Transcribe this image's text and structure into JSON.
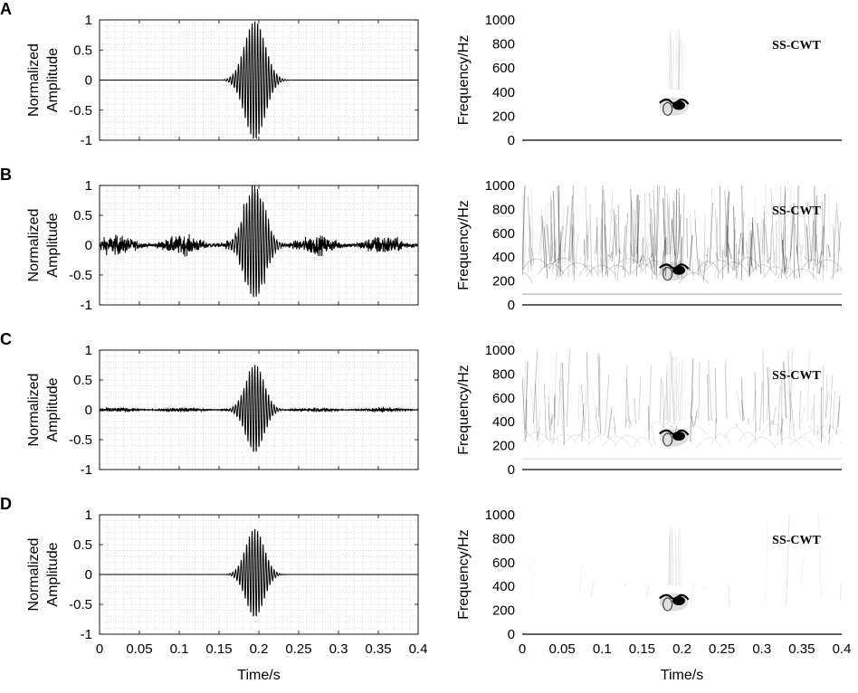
{
  "chart_data": [
    {
      "type": "line",
      "panel_label": "A",
      "ylabel": "Normalized\nAmplitude",
      "xlabel": "",
      "xlim": [
        0,
        0.4
      ],
      "ylim": [
        -1,
        1
      ],
      "yticks": [
        1,
        0.5,
        0,
        -0.5,
        -1
      ],
      "ytick_labels": [
        "1",
        "0.5",
        "0",
        "-0.5",
        "-1"
      ],
      "grid": true,
      "signal": {
        "noise": 0.0,
        "burst_center": 0.195,
        "burst_width": 0.018,
        "peak": 1.0,
        "trough": -1.0,
        "burst_freq": 290
      },
      "x": [
        0,
        0.16,
        0.17,
        0.18,
        0.19,
        0.195,
        0.2,
        0.21,
        0.4
      ],
      "y": [
        0,
        0,
        0.25,
        -0.55,
        0.85,
        1.0,
        -1.0,
        0,
        0
      ]
    },
    {
      "type": "heatmap",
      "panel_label": "A",
      "annotation": "SS-CWT",
      "ylabel": "Frequency/Hz",
      "xlabel": "",
      "xlim": [
        0,
        0.4
      ],
      "ylim": [
        0,
        1000
      ],
      "yticks": [
        1000,
        800,
        600,
        400,
        200,
        0
      ],
      "ytick_labels": [
        "1000",
        "800",
        "600",
        "400",
        "200",
        "0"
      ],
      "energy_center": {
        "time": 0.19,
        "frequency": 300
      },
      "noise_level": 0.0
    },
    {
      "type": "line",
      "panel_label": "B",
      "ylabel": "Normalized\nAmplitude",
      "xlabel": "",
      "xlim": [
        0,
        0.4
      ],
      "ylim": [
        -1,
        1
      ],
      "yticks": [
        1,
        0.5,
        0,
        -0.5,
        -1
      ],
      "ytick_labels": [
        "1",
        "0.5",
        "0",
        "-0.5",
        "-1"
      ],
      "grid": true,
      "signal": {
        "noise": 0.11,
        "burst_center": 0.195,
        "burst_width": 0.018,
        "peak": 1.0,
        "trough": -0.9,
        "burst_freq": 290
      },
      "x": [
        0,
        0.1,
        0.19,
        0.195,
        0.2,
        0.3,
        0.4
      ],
      "y": [
        0.05,
        -0.2,
        0.7,
        1.0,
        -0.9,
        0.15,
        0.05
      ]
    },
    {
      "type": "heatmap",
      "panel_label": "B",
      "annotation": "SS-CWT",
      "ylabel": "Frequency/Hz",
      "xlabel": "",
      "xlim": [
        0,
        0.4
      ],
      "ylim": [
        0,
        1000
      ],
      "yticks": [
        1000,
        800,
        600,
        400,
        200,
        0
      ],
      "ytick_labels": [
        "1000",
        "800",
        "600",
        "400",
        "200",
        "0"
      ],
      "energy_center": {
        "time": 0.19,
        "frequency": 300
      },
      "noise_level": 1.0
    },
    {
      "type": "line",
      "panel_label": "C",
      "ylabel": "Normalized\nAmplitude",
      "xlabel": "",
      "xlim": [
        0,
        0.4
      ],
      "ylim": [
        -1,
        1
      ],
      "yticks": [
        1,
        0.5,
        0,
        -0.5,
        -1
      ],
      "ytick_labels": [
        "1",
        "0.5",
        "0",
        "-0.5",
        "-1"
      ],
      "grid": true,
      "signal": {
        "noise": 0.025,
        "burst_center": 0.195,
        "burst_width": 0.016,
        "peak": 0.78,
        "trough": -0.72,
        "burst_freq": 290
      },
      "x": [
        0,
        0.17,
        0.19,
        0.196,
        0.2,
        0.21,
        0.4
      ],
      "y": [
        0,
        0.05,
        0.6,
        0.78,
        -0.72,
        0.05,
        0
      ]
    },
    {
      "type": "heatmap",
      "panel_label": "C",
      "annotation": "SS-CWT",
      "ylabel": "Frequency/Hz",
      "xlabel": "",
      "xlim": [
        0,
        0.4
      ],
      "ylim": [
        0,
        1000
      ],
      "yticks": [
        1000,
        800,
        600,
        400,
        200,
        0
      ],
      "ytick_labels": [
        "1000",
        "800",
        "600",
        "400",
        "200",
        "0"
      ],
      "energy_center": {
        "time": 0.19,
        "frequency": 290
      },
      "noise_level": 0.45
    },
    {
      "type": "line",
      "panel_label": "D",
      "ylabel": "Normalized\nAmplitude",
      "xlabel": "Time/s",
      "xlim": [
        0,
        0.4
      ],
      "ylim": [
        -1,
        1
      ],
      "yticks": [
        1,
        0.5,
        0,
        -0.5,
        -1
      ],
      "ytick_labels": [
        "1",
        "0.5",
        "0",
        "-0.5",
        "-1"
      ],
      "xticks": [
        0,
        0.05,
        0.1,
        0.15,
        0.2,
        0.25,
        0.3,
        0.35,
        0.4
      ],
      "xtick_labels": [
        "0",
        "0.05",
        "0.1",
        "0.15",
        "0.2",
        "0.25",
        "0.3",
        "0.35",
        "0.4"
      ],
      "grid": true,
      "signal": {
        "noise": 0.0,
        "burst_center": 0.195,
        "burst_width": 0.016,
        "peak": 0.78,
        "trough": -0.72,
        "burst_freq": 290
      },
      "x": [
        0,
        0.17,
        0.19,
        0.196,
        0.2,
        0.21,
        0.4
      ],
      "y": [
        0,
        0.05,
        0.6,
        0.78,
        -0.72,
        0,
        0
      ]
    },
    {
      "type": "heatmap",
      "panel_label": "D",
      "annotation": "SS-CWT",
      "ylabel": "Frequency/Hz",
      "xlabel": "Time/s",
      "xlim": [
        0,
        0.4
      ],
      "ylim": [
        0,
        1000
      ],
      "yticks": [
        1000,
        800,
        600,
        400,
        200,
        0
      ],
      "ytick_labels": [
        "1000",
        "800",
        "600",
        "400",
        "200",
        "0"
      ],
      "xticks": [
        0,
        0.05,
        0.1,
        0.15,
        0.2,
        0.25,
        0.3,
        0.35,
        0.4
      ],
      "xtick_labels": [
        "0",
        "0.05",
        "0.1",
        "0.15",
        "0.2",
        "0.25",
        "0.3",
        "0.35",
        "0.4"
      ],
      "energy_center": {
        "time": 0.19,
        "frequency": 290
      },
      "noise_level": 0.05
    }
  ]
}
